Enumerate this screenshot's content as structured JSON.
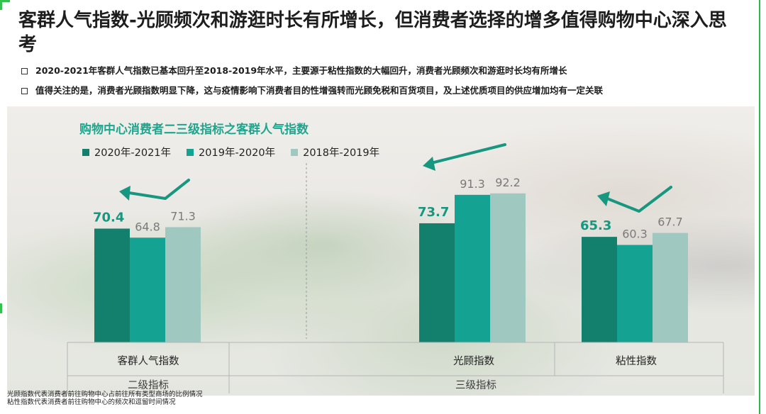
{
  "title": "客群人气指数-光顾频次和游逛时长有所增长，但消费者选择的增多值得购物中心深入思考",
  "bullets": [
    "2020-2021年客群人气指数已基本回升至2018-2019年水平，主要源于粘性指数的大幅回升，消费者光顾频次和游逛时长均有所增长",
    "值得关注的是，消费者光顾指数明显下降，这与疫情影响下消费者目的性增强转而光顾免税和百货项目，及上述优质项目的供应增加均有一定关联"
  ],
  "footnotes": [
    "光顾指数代表消费者前往购物中心占前往所有类型商场的比例情况",
    "粘性指数代表消费者前往购物中心的频次和逗留时间情况"
  ],
  "colors": {
    "accent_green": "#2db84a",
    "title_teal": "#1fa58e",
    "arrow": "#17977f"
  },
  "icons": [
    "trend-arrow-icon"
  ],
  "chart_data": {
    "type": "bar",
    "title": "购物中心消费者二三级指标之客群人气指数",
    "categories": [
      "客群人气指数",
      "光顾指数",
      "粘性指数"
    ],
    "series": [
      {
        "name": "2020年-2021年",
        "color": "#13806d",
        "values": [
          70.4,
          73.7,
          65.3
        ]
      },
      {
        "name": "2019年-2020年",
        "color": "#14a392",
        "values": [
          64.8,
          91.3,
          60.3
        ]
      },
      {
        "name": "2018年-2019年",
        "color": "#9fc8c1",
        "values": [
          71.3,
          92.2,
          67.7
        ]
      }
    ],
    "groups": [
      {
        "label": "二级指标",
        "categories": [
          "客群人气指数"
        ]
      },
      {
        "label": "三级指标",
        "categories": [
          "光顾指数",
          "粘性指数"
        ]
      }
    ],
    "legend_position": "top-left",
    "grid": false
  }
}
